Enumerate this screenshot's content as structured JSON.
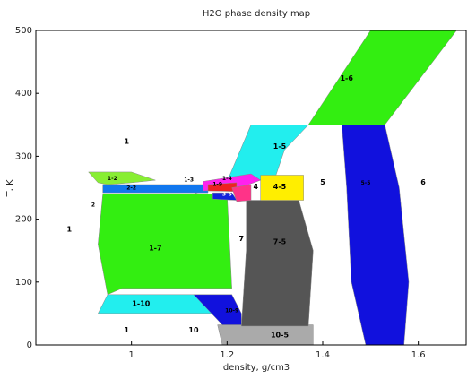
{
  "chart_data": {
    "type": "area",
    "title": "H2O phase density map",
    "xlabel": "density, g/cm3",
    "ylabel": "T, K",
    "xlim": [
      0.8,
      1.7
    ],
    "ylim": [
      0,
      500
    ],
    "xticks": [
      {
        "value": 1.0,
        "label": "1"
      },
      {
        "value": 1.2,
        "label": "1.2"
      },
      {
        "value": 1.4,
        "label": "1.4"
      },
      {
        "value": 1.6,
        "label": "1.6"
      }
    ],
    "yticks": [
      {
        "value": 0,
        "label": "0"
      },
      {
        "value": 100,
        "label": "100"
      },
      {
        "value": 200,
        "label": "200"
      },
      {
        "value": 300,
        "label": "300"
      },
      {
        "value": 400,
        "label": "400"
      },
      {
        "value": 500,
        "label": "500"
      }
    ],
    "regions": [
      {
        "name": "fill-1-6",
        "label": "",
        "color": "#33ee11",
        "points": [
          [
            1.37,
            350
          ],
          [
            1.53,
            350
          ],
          [
            1.68,
            500
          ],
          [
            1.5,
            500
          ]
        ]
      },
      {
        "name": "fill-1-5",
        "label": "",
        "color": "#22eeee",
        "points": [
          [
            1.13,
            240
          ],
          [
            1.2,
            260
          ],
          [
            1.25,
            350
          ],
          [
            1.37,
            350
          ],
          [
            1.32,
            310
          ],
          [
            1.3,
            265
          ],
          [
            1.21,
            258
          ]
        ]
      },
      {
        "name": "fill-1-2",
        "label": "",
        "color": "#88ee33",
        "points": [
          [
            0.91,
            275
          ],
          [
            1.0,
            275
          ],
          [
            1.05,
            262
          ],
          [
            1.0,
            258
          ],
          [
            0.95,
            255
          ],
          [
            0.93,
            258
          ]
        ]
      },
      {
        "name": "fill-2-2",
        "label": "",
        "color": "#1177ee",
        "points": [
          [
            0.94,
            255
          ],
          [
            1.16,
            255
          ],
          [
            1.16,
            242
          ],
          [
            0.94,
            242
          ]
        ]
      },
      {
        "name": "fill-1-7",
        "label": "",
        "color": "#33ee11",
        "points": [
          [
            0.94,
            240
          ],
          [
            1.2,
            240
          ],
          [
            1.21,
            90
          ],
          [
            0.98,
            90
          ],
          [
            0.95,
            80
          ],
          [
            0.93,
            160
          ]
        ]
      },
      {
        "name": "fill-1-10",
        "label": "",
        "color": "#22eeee",
        "points": [
          [
            0.95,
            80
          ],
          [
            1.21,
            80
          ],
          [
            1.18,
            50
          ],
          [
            1.1,
            50
          ],
          [
            0.93,
            50
          ]
        ]
      },
      {
        "name": "fill-10-5",
        "label": "",
        "color": "#aaaaaa",
        "points": [
          [
            1.18,
            32
          ],
          [
            1.38,
            32
          ],
          [
            1.38,
            0
          ],
          [
            1.19,
            0
          ]
        ]
      },
      {
        "name": "fill-10-b",
        "label": "",
        "color": "#1111dd",
        "points": [
          [
            1.13,
            80
          ],
          [
            1.21,
            80
          ],
          [
            1.23,
            50
          ],
          [
            1.23,
            32
          ],
          [
            1.19,
            32
          ]
        ]
      },
      {
        "name": "fill-7-5",
        "label": "",
        "color": "#555555",
        "points": [
          [
            1.24,
            230
          ],
          [
            1.35,
            230
          ],
          [
            1.38,
            150
          ],
          [
            1.37,
            30
          ],
          [
            1.23,
            30
          ],
          [
            1.24,
            150
          ]
        ]
      },
      {
        "name": "fill-4-5",
        "label": "",
        "color": "#ffee00",
        "points": [
          [
            1.27,
            270
          ],
          [
            1.36,
            270
          ],
          [
            1.36,
            230
          ],
          [
            1.27,
            230
          ]
        ]
      },
      {
        "name": "fill-mag",
        "label": "",
        "color": "#ff22ee",
        "points": [
          [
            1.15,
            260
          ],
          [
            1.25,
            272
          ],
          [
            1.27,
            262
          ],
          [
            1.22,
            248
          ],
          [
            1.15,
            245
          ]
        ]
      },
      {
        "name": "fill-red",
        "label": "",
        "color": "#ee2222",
        "points": [
          [
            1.16,
            255
          ],
          [
            1.22,
            258
          ],
          [
            1.22,
            244
          ],
          [
            1.16,
            245
          ]
        ]
      },
      {
        "name": "fill-blue-small",
        "label": "",
        "color": "#1122dd",
        "points": [
          [
            1.17,
            242
          ],
          [
            1.21,
            242
          ],
          [
            1.22,
            230
          ],
          [
            1.17,
            232
          ]
        ]
      },
      {
        "name": "fill-pink",
        "label": "",
        "color": "#ff3388",
        "points": [
          [
            1.21,
            250
          ],
          [
            1.25,
            255
          ],
          [
            1.25,
            230
          ],
          [
            1.22,
            228
          ]
        ]
      },
      {
        "name": "fill-5-5",
        "label": "",
        "color": "#1111dd",
        "points": [
          [
            1.44,
            350
          ],
          [
            1.53,
            350
          ],
          [
            1.56,
            250
          ],
          [
            1.58,
            100
          ],
          [
            1.57,
            0
          ],
          [
            1.49,
            0
          ],
          [
            1.46,
            100
          ],
          [
            1.45,
            250
          ]
        ]
      }
    ],
    "labels": [
      {
        "text": "1-6",
        "x": 1.45,
        "y": 420,
        "size": "normal",
        "color": "#000"
      },
      {
        "text": "1-5",
        "x": 1.31,
        "y": 312,
        "size": "normal",
        "color": "#000"
      },
      {
        "text": "1",
        "x": 0.99,
        "y": 320,
        "size": "normal",
        "color": "#000"
      },
      {
        "text": "1",
        "x": 0.87,
        "y": 180,
        "size": "normal",
        "color": "#000"
      },
      {
        "text": "1-2",
        "x": 0.96,
        "y": 262,
        "size": "small",
        "color": "#000"
      },
      {
        "text": "2-2",
        "x": 1.0,
        "y": 247,
        "size": "small",
        "color": "#000"
      },
      {
        "text": "2",
        "x": 0.92,
        "y": 220,
        "size": "small",
        "color": "#000"
      },
      {
        "text": "1-3",
        "x": 1.12,
        "y": 260,
        "size": "small",
        "color": "#000"
      },
      {
        "text": "1-7",
        "x": 1.05,
        "y": 150,
        "size": "normal",
        "color": "#000"
      },
      {
        "text": "1-10",
        "x": 1.02,
        "y": 62,
        "size": "normal",
        "color": "#000"
      },
      {
        "text": "1",
        "x": 0.99,
        "y": 20,
        "size": "normal",
        "color": "#000"
      },
      {
        "text": "10",
        "x": 1.13,
        "y": 20,
        "size": "normal",
        "color": "#000"
      },
      {
        "text": "10-5",
        "x": 1.31,
        "y": 12,
        "size": "normal",
        "color": "#000"
      },
      {
        "text": "10-9",
        "x": 1.21,
        "y": 52,
        "size": "small",
        "color": "#000"
      },
      {
        "text": "7",
        "x": 1.23,
        "y": 165,
        "size": "normal",
        "color": "#000"
      },
      {
        "text": "7-5",
        "x": 1.31,
        "y": 160,
        "size": "normal",
        "color": "#000"
      },
      {
        "text": "4",
        "x": 1.26,
        "y": 248,
        "size": "normal",
        "color": "#000"
      },
      {
        "text": "4-5",
        "x": 1.31,
        "y": 248,
        "size": "normal",
        "color": "#000"
      },
      {
        "text": "5",
        "x": 1.4,
        "y": 255,
        "size": "normal",
        "color": "#000"
      },
      {
        "text": "5-5",
        "x": 1.49,
        "y": 255,
        "size": "small",
        "color": "#000"
      },
      {
        "text": "6",
        "x": 1.61,
        "y": 255,
        "size": "normal",
        "color": "#000"
      },
      {
        "text": "1-4",
        "x": 1.2,
        "y": 262,
        "size": "small",
        "color": "#000"
      },
      {
        "text": "1-9",
        "x": 1.18,
        "y": 253,
        "size": "small",
        "color": "#000"
      },
      {
        "text": "3-5",
        "x": 1.2,
        "y": 237,
        "size": "small",
        "color": "#fff"
      }
    ],
    "grid": false
  }
}
